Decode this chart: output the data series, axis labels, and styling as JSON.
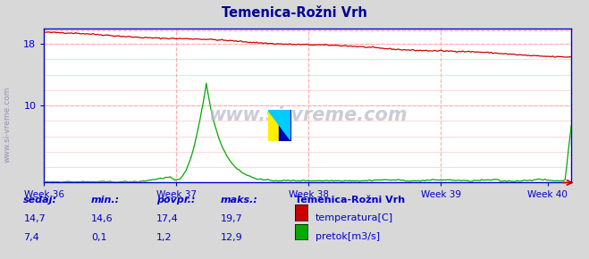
{
  "title": "Temenica-Rožni Vrh",
  "title_color": "#000099",
  "bg_color": "#d8d8d8",
  "plot_bg_color": "#ffffff",
  "grid_color": "#ffbbbb",
  "axis_color": "#0000cc",
  "tick_label_color": "#0000cc",
  "week_labels": [
    "Week 36",
    "Week 37",
    "Week 38",
    "Week 39",
    "Week 40"
  ],
  "temp_color": "#cc0000",
  "flow_color": "#00aa00",
  "dashed_color": "#ffaaaa",
  "watermark": "www.si-vreme.com",
  "side_text": "www.si-vreme.com",
  "footer_title": "Temenica-Rožni Vrh",
  "footer_labels": [
    "sedaj:",
    "min.:",
    "povpr.:",
    "maks.:"
  ],
  "footer_temp_values": [
    "14,7",
    "14,6",
    "17,4",
    "19,7"
  ],
  "footer_flow_values": [
    "7,4",
    "0,1",
    "1,2",
    "12,9"
  ],
  "footer_series": [
    "temperatura[C]",
    "pretok[m3/s]"
  ],
  "footer_color": "#0000cc",
  "temp_max": 19.7,
  "temp_min": 14.6,
  "flow_max": 12.9,
  "yticks": [
    10,
    18
  ],
  "ytick_labels": [
    "10",
    "18"
  ]
}
